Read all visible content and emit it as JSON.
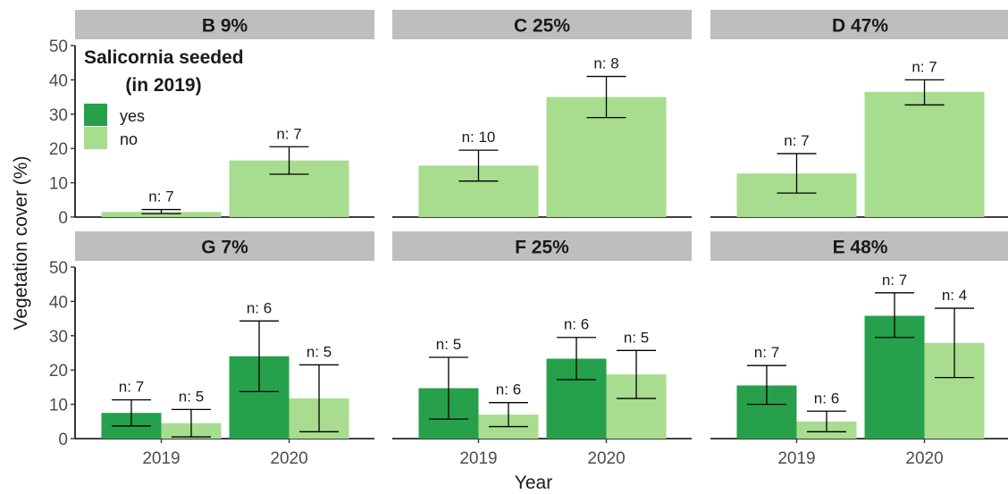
{
  "chart_data": {
    "type": "bar",
    "xlabel": "Year",
    "ylabel": "Vegetation cover (%)",
    "ylim": [
      0,
      50
    ],
    "yticks": [
      "0",
      "10",
      "20",
      "30",
      "40",
      "50"
    ],
    "categories": [
      "2019",
      "2020"
    ],
    "legend": {
      "title_line1": "Salicornia seeded",
      "title_line2": "(in 2019)",
      "placement": "top-left",
      "entries": [
        {
          "key": "yes",
          "label": "yes",
          "color": "#26a04b"
        },
        {
          "key": "no",
          "label": "no",
          "color": "#a8dc8e"
        }
      ]
    },
    "panels": [
      {
        "title": "B 9%",
        "bars": [
          {
            "year": "2019",
            "group": "no",
            "value": 1.5,
            "err_low": 1.0,
            "err_high": 2.2,
            "n_label": "n: 7"
          },
          {
            "year": "2020",
            "group": "no",
            "value": 16.5,
            "err_low": 12.5,
            "err_high": 20.5,
            "n_label": "n: 7"
          }
        ]
      },
      {
        "title": "C 25%",
        "bars": [
          {
            "year": "2019",
            "group": "no",
            "value": 15.0,
            "err_low": 10.5,
            "err_high": 19.5,
            "n_label": "n: 10"
          },
          {
            "year": "2020",
            "group": "no",
            "value": 35.0,
            "err_low": 29.0,
            "err_high": 41.0,
            "n_label": "n: 8"
          }
        ]
      },
      {
        "title": "D 47%",
        "bars": [
          {
            "year": "2019",
            "group": "no",
            "value": 12.7,
            "err_low": 7.0,
            "err_high": 18.5,
            "n_label": "n: 7"
          },
          {
            "year": "2020",
            "group": "no",
            "value": 36.5,
            "err_low": 32.7,
            "err_high": 40.0,
            "n_label": "n: 7"
          }
        ]
      },
      {
        "title": "G 7%",
        "bars": [
          {
            "year": "2019",
            "group": "yes",
            "value": 7.5,
            "err_low": 3.7,
            "err_high": 11.3,
            "n_label": "n: 7"
          },
          {
            "year": "2019",
            "group": "no",
            "value": 4.5,
            "err_low": 0.5,
            "err_high": 8.5,
            "n_label": "n: 5"
          },
          {
            "year": "2020",
            "group": "yes",
            "value": 24.0,
            "err_low": 13.7,
            "err_high": 34.3,
            "n_label": "n: 6"
          },
          {
            "year": "2020",
            "group": "no",
            "value": 11.7,
            "err_low": 2.0,
            "err_high": 21.5,
            "n_label": "n: 5"
          }
        ]
      },
      {
        "title": "F 25%",
        "bars": [
          {
            "year": "2019",
            "group": "yes",
            "value": 14.7,
            "err_low": 5.7,
            "err_high": 23.7,
            "n_label": "n: 5"
          },
          {
            "year": "2019",
            "group": "no",
            "value": 7.0,
            "err_low": 3.5,
            "err_high": 10.5,
            "n_label": "n: 6"
          },
          {
            "year": "2020",
            "group": "yes",
            "value": 23.3,
            "err_low": 17.2,
            "err_high": 29.5,
            "n_label": "n: 6"
          },
          {
            "year": "2020",
            "group": "no",
            "value": 18.7,
            "err_low": 11.7,
            "err_high": 25.7,
            "n_label": "n: 5"
          }
        ]
      },
      {
        "title": "E 48%",
        "bars": [
          {
            "year": "2019",
            "group": "yes",
            "value": 15.5,
            "err_low": 10.0,
            "err_high": 21.3,
            "n_label": "n: 7"
          },
          {
            "year": "2019",
            "group": "no",
            "value": 5.0,
            "err_low": 2.0,
            "err_high": 8.0,
            "n_label": "n: 6"
          },
          {
            "year": "2020",
            "group": "yes",
            "value": 35.8,
            "err_low": 29.5,
            "err_high": 42.5,
            "n_label": "n: 7"
          },
          {
            "year": "2020",
            "group": "no",
            "value": 27.9,
            "err_low": 17.8,
            "err_high": 38.0,
            "n_label": "n: 4"
          }
        ]
      }
    ]
  }
}
